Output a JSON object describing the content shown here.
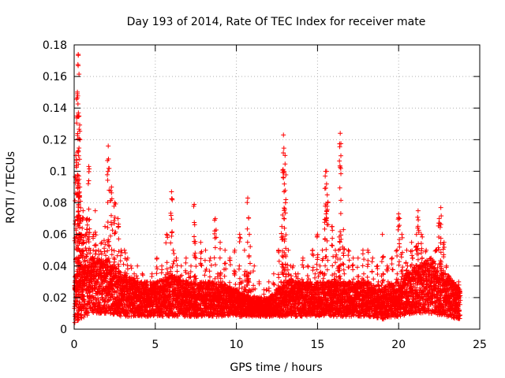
{
  "chart_data": {
    "type": "scatter",
    "title": "Day 193 of 2014, Rate Of TEC Index for receiver mate",
    "xlabel": "GPS time / hours",
    "ylabel": "ROTI / TECUs",
    "xlim": [
      0,
      25
    ],
    "ylim": [
      0,
      0.18
    ],
    "xticks": [
      0,
      5,
      10,
      15,
      20,
      25
    ],
    "xtick_labels": [
      "0",
      "5",
      "10",
      "15",
      "20",
      "25"
    ],
    "yticks": [
      0,
      0.02,
      0.04,
      0.06,
      0.08,
      0.1,
      0.12,
      0.14,
      0.16,
      0.18
    ],
    "ytick_labels": [
      "0",
      "0.02",
      "0.04",
      "0.06",
      "0.08",
      "0.1",
      "0.12",
      "0.14",
      "0.16",
      "0.18"
    ],
    "grid": true,
    "marker": "+",
    "color": "#ff0000",
    "series": [
      {
        "name": "ROTI",
        "x": [
          0.05,
          0.1,
          0.15,
          0.2,
          0.25,
          0.3,
          0.35,
          0.4,
          0.45,
          0.5,
          0.55,
          0.6,
          0.7,
          0.8,
          0.9,
          1.0,
          1.1,
          1.2,
          1.3,
          1.5,
          1.7,
          1.9,
          2.1,
          2.3,
          2.5,
          2.7,
          2.9,
          3.1,
          3.3,
          3.5,
          3.7,
          3.9,
          4.2,
          4.5,
          4.8,
          5.1,
          5.4,
          5.7,
          6.0,
          6.1,
          6.3,
          6.6,
          6.9,
          7.2,
          7.4,
          7.5,
          7.8,
          8.1,
          8.4,
          8.7,
          9.0,
          9.3,
          9.6,
          9.9,
          10.2,
          10.5,
          10.7,
          10.8,
          11.1,
          11.4,
          11.7,
          12.0,
          12.3,
          12.6,
          12.8,
          12.9,
          13.0,
          13.2,
          13.5,
          13.8,
          14.1,
          14.4,
          14.7,
          15.0,
          15.3,
          15.5,
          15.6,
          15.9,
          16.1,
          16.3,
          16.4,
          16.6,
          16.9,
          17.2,
          17.5,
          17.8,
          18.1,
          18.4,
          18.7,
          19.0,
          19.3,
          19.6,
          19.9,
          20.0,
          20.2,
          20.5,
          20.8,
          21.1,
          21.2,
          21.4,
          21.7,
          22.0,
          22.3,
          22.5,
          22.6,
          22.8,
          23.1,
          23.4,
          23.7,
          0.08,
          0.12,
          0.18,
          0.22,
          0.28,
          0.32,
          0.38,
          0.42,
          0.48,
          0.52,
          0.65,
          0.75,
          0.85,
          0.95,
          1.05,
          1.25,
          1.45,
          1.65,
          1.85,
          2.05,
          2.25,
          2.45,
          2.65,
          2.85,
          3.05,
          3.25,
          3.45,
          3.65,
          3.85,
          4.05,
          4.35,
          4.65,
          4.95,
          5.25,
          5.55,
          5.85,
          6.15,
          6.45,
          6.75,
          7.05,
          7.35,
          7.65,
          7.95,
          8.25,
          8.55,
          8.85,
          9.15,
          9.45,
          9.75,
          10.05,
          10.35,
          10.65,
          10.95,
          11.25,
          11.55,
          11.85,
          12.15,
          12.45,
          12.75,
          13.05,
          13.35,
          13.65,
          13.95,
          14.25,
          14.55,
          14.85,
          15.15,
          15.45,
          15.75,
          16.05,
          16.35,
          16.65,
          16.95,
          17.25,
          17.55,
          17.85,
          18.15,
          18.45,
          18.75,
          19.05,
          19.35,
          19.65,
          19.95,
          20.25,
          20.55,
          20.85,
          21.15,
          21.45,
          21.75,
          22.05,
          22.35,
          22.65,
          22.95,
          23.25,
          23.55
        ],
        "y": [
          0.025,
          0.11,
          0.06,
          0.149,
          0.174,
          0.135,
          0.09,
          0.07,
          0.06,
          0.05,
          0.075,
          0.055,
          0.06,
          0.07,
          0.103,
          0.05,
          0.045,
          0.06,
          0.075,
          0.05,
          0.055,
          0.065,
          0.116,
          0.09,
          0.08,
          0.07,
          0.05,
          0.05,
          0.045,
          0.04,
          0.035,
          0.04,
          0.035,
          0.03,
          0.035,
          0.045,
          0.04,
          0.06,
          0.087,
          0.05,
          0.045,
          0.04,
          0.045,
          0.04,
          0.079,
          0.045,
          0.055,
          0.05,
          0.045,
          0.07,
          0.055,
          0.05,
          0.045,
          0.05,
          0.06,
          0.05,
          0.083,
          0.06,
          0.04,
          0.03,
          0.025,
          0.03,
          0.035,
          0.05,
          0.065,
          0.123,
          0.11,
          0.05,
          0.04,
          0.035,
          0.045,
          0.04,
          0.05,
          0.06,
          0.05,
          0.1,
          0.085,
          0.065,
          0.05,
          0.05,
          0.124,
          0.063,
          0.05,
          0.045,
          0.045,
          0.05,
          0.05,
          0.045,
          0.04,
          0.06,
          0.04,
          0.045,
          0.05,
          0.073,
          0.06,
          0.05,
          0.055,
          0.06,
          0.075,
          0.06,
          0.05,
          0.045,
          0.05,
          0.07,
          0.077,
          0.055,
          0.03,
          0.025,
          0.03,
          0.02,
          0.03,
          0.04,
          0.035,
          0.045,
          0.05,
          0.06,
          0.04,
          0.035,
          0.03,
          0.045,
          0.05,
          0.04,
          0.035,
          0.03,
          0.04,
          0.045,
          0.035,
          0.03,
          0.035,
          0.04,
          0.045,
          0.03,
          0.025,
          0.03,
          0.035,
          0.03,
          0.025,
          0.02,
          0.025,
          0.03,
          0.025,
          0.02,
          0.025,
          0.03,
          0.035,
          0.03,
          0.025,
          0.03,
          0.035,
          0.03,
          0.025,
          0.02,
          0.025,
          0.03,
          0.035,
          0.03,
          0.025,
          0.02,
          0.025,
          0.03,
          0.035,
          0.025,
          0.02,
          0.02,
          0.025,
          0.02,
          0.025,
          0.03,
          0.035,
          0.04,
          0.035,
          0.03,
          0.025,
          0.03,
          0.035,
          0.04,
          0.035,
          0.03,
          0.035,
          0.04,
          0.035,
          0.03,
          0.025,
          0.03,
          0.035,
          0.03,
          0.025,
          0.03,
          0.035,
          0.03,
          0.025,
          0.03,
          0.035,
          0.04,
          0.045,
          0.05,
          0.045,
          0.04,
          0.035,
          0.03,
          0.035,
          0.04,
          0.03,
          0.025
        ]
      }
    ],
    "baseline_band": [
      {
        "x": 0,
        "low": 0.004,
        "high": 0.035
      },
      {
        "x": 1,
        "low": 0.01,
        "high": 0.045
      },
      {
        "x": 2,
        "low": 0.01,
        "high": 0.045
      },
      {
        "x": 3,
        "low": 0.008,
        "high": 0.035
      },
      {
        "x": 4,
        "low": 0.008,
        "high": 0.03
      },
      {
        "x": 5,
        "low": 0.008,
        "high": 0.03
      },
      {
        "x": 6,
        "low": 0.008,
        "high": 0.035
      },
      {
        "x": 7,
        "low": 0.008,
        "high": 0.03
      },
      {
        "x": 8,
        "low": 0.008,
        "high": 0.03
      },
      {
        "x": 9,
        "low": 0.008,
        "high": 0.03
      },
      {
        "x": 10,
        "low": 0.008,
        "high": 0.025
      },
      {
        "x": 11,
        "low": 0.008,
        "high": 0.02
      },
      {
        "x": 12,
        "low": 0.008,
        "high": 0.02
      },
      {
        "x": 13,
        "low": 0.008,
        "high": 0.03
      },
      {
        "x": 14,
        "low": 0.008,
        "high": 0.03
      },
      {
        "x": 15,
        "low": 0.008,
        "high": 0.03
      },
      {
        "x": 16,
        "low": 0.008,
        "high": 0.03
      },
      {
        "x": 17,
        "low": 0.008,
        "high": 0.03
      },
      {
        "x": 18,
        "low": 0.008,
        "high": 0.03
      },
      {
        "x": 19,
        "low": 0.006,
        "high": 0.028
      },
      {
        "x": 20,
        "low": 0.008,
        "high": 0.03
      },
      {
        "x": 21,
        "low": 0.01,
        "high": 0.04
      },
      {
        "x": 22,
        "low": 0.01,
        "high": 0.045
      },
      {
        "x": 23,
        "low": 0.008,
        "high": 0.035
      },
      {
        "x": 23.8,
        "low": 0.006,
        "high": 0.025
      }
    ]
  }
}
